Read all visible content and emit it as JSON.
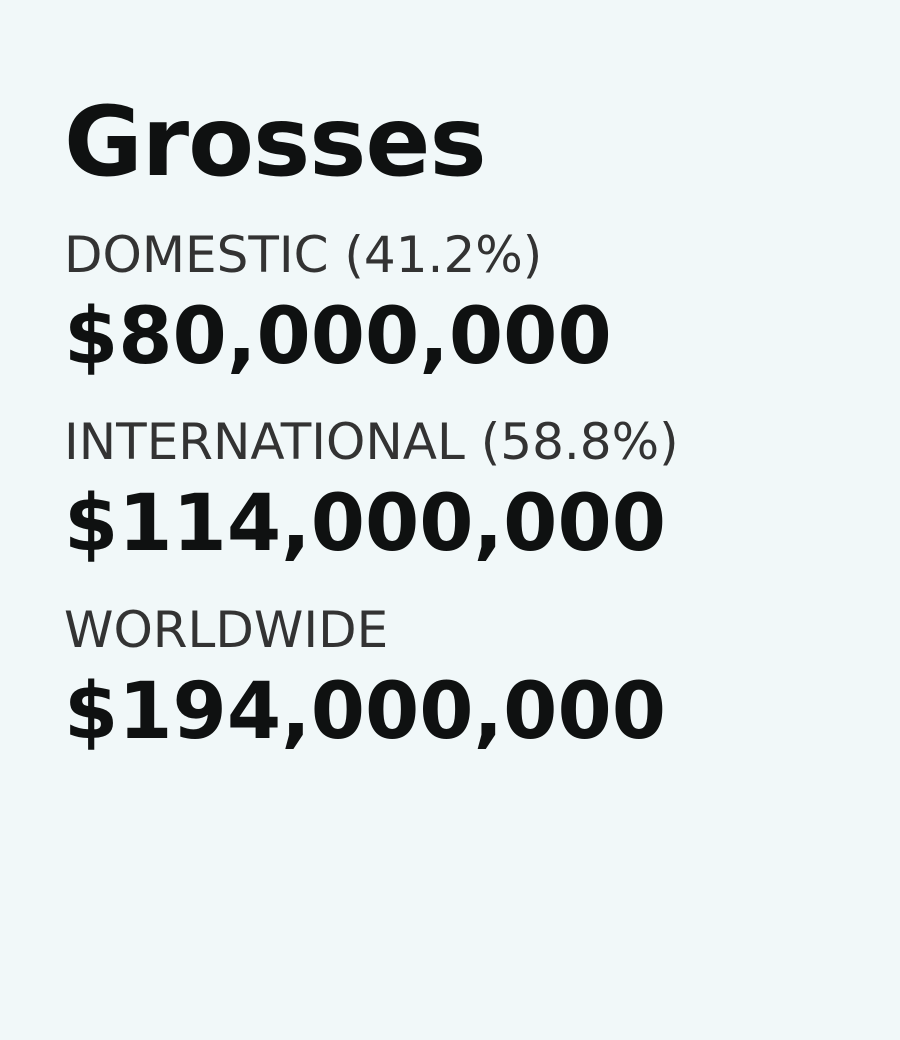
{
  "header": {
    "title": "Grosses"
  },
  "grosses": [
    {
      "label": "DOMESTIC (41.2%)",
      "value": "$80,000,000"
    },
    {
      "label": "INTERNATIONAL (58.8%)",
      "value": "$114,000,000"
    },
    {
      "label": "WORLDWIDE",
      "value": "$194,000,000"
    }
  ]
}
